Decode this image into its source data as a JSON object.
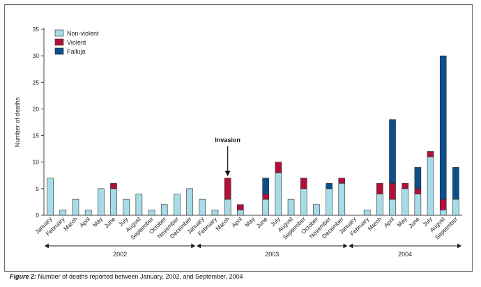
{
  "chart_data": {
    "type": "bar",
    "stacked": true,
    "ylabel": "Number of deaths",
    "ylim": [
      0,
      35
    ],
    "yticks": [
      0,
      5,
      10,
      15,
      20,
      25,
      30,
      35
    ],
    "categories": [
      "January",
      "February",
      "March",
      "April",
      "May",
      "June",
      "July",
      "August",
      "September",
      "October",
      "November",
      "December",
      "January",
      "February",
      "March",
      "April",
      "May",
      "June",
      "July",
      "August",
      "September",
      "October",
      "November",
      "December",
      "January",
      "February",
      "March",
      "April",
      "May",
      "June",
      "July",
      "August",
      "September"
    ],
    "series": [
      {
        "name": "Non-violent",
        "color": "#a6dce8",
        "values": [
          7,
          1,
          3,
          1,
          5,
          5,
          3,
          4,
          1,
          2,
          4,
          5,
          3,
          1,
          3,
          1,
          0,
          3,
          8,
          3,
          5,
          2,
          5,
          6,
          0,
          1,
          4,
          3,
          5,
          4,
          11,
          1,
          3
        ]
      },
      {
        "name": "Violent",
        "color": "#b0103a",
        "values": [
          0,
          0,
          0,
          0,
          0,
          1,
          0,
          0,
          0,
          0,
          0,
          0,
          0,
          0,
          4,
          1,
          0,
          1,
          2,
          0,
          2,
          0,
          0,
          1,
          0,
          0,
          2,
          3,
          1,
          1,
          1,
          2,
          0
        ]
      },
      {
        "name": "Falluja",
        "color": "#0b4f8c",
        "values": [
          0,
          0,
          0,
          0,
          0,
          0,
          0,
          0,
          0,
          0,
          0,
          0,
          0,
          0,
          0,
          0,
          0,
          3,
          0,
          0,
          0,
          0,
          1,
          0,
          0,
          0,
          0,
          12,
          0,
          4,
          0,
          27,
          6
        ]
      }
    ],
    "years": [
      {
        "label": "2002",
        "start": 0,
        "end": 11
      },
      {
        "label": "2003",
        "start": 12,
        "end": 23
      },
      {
        "label": "2004",
        "start": 24,
        "end": 32
      }
    ],
    "annotations": [
      {
        "text": "Invasion",
        "index": 14
      }
    ],
    "legend_position": "top-left"
  },
  "caption": {
    "label": "Figure 2:",
    "text": " Number of deaths reported between January, 2002, and September, 2004"
  }
}
